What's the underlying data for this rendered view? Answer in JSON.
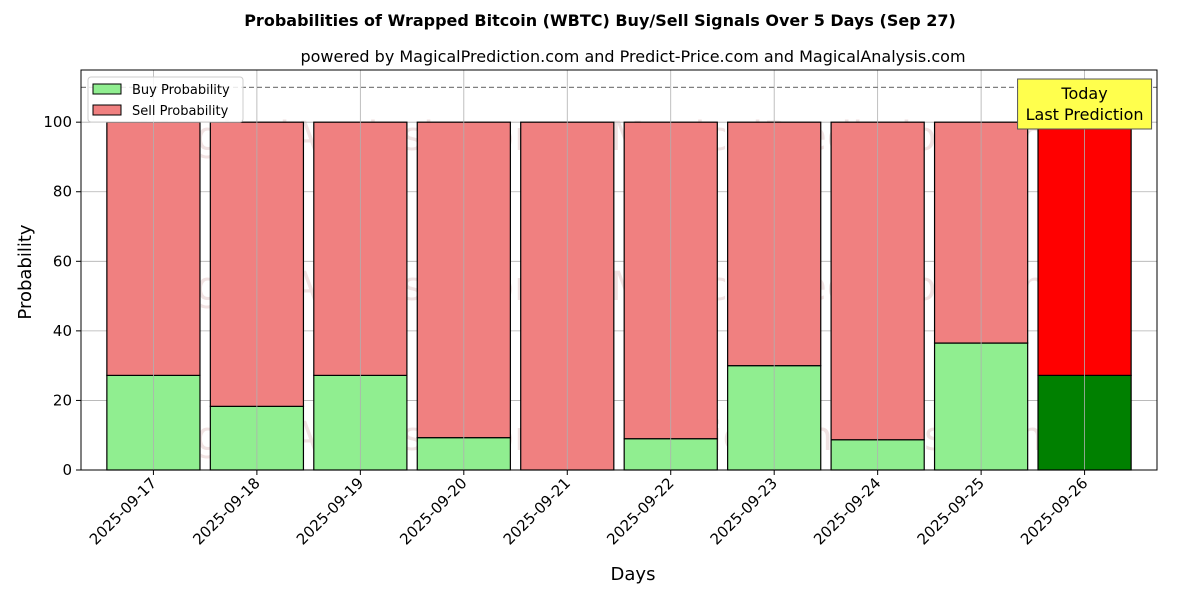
{
  "chart_data": {
    "type": "bar",
    "stacked": true,
    "title": "Probabilities of Wrapped Bitcoin (WBTC) Buy/Sell Signals Over 5 Days (Sep 27)",
    "subtitle": "powered by MagicalPrediction.com and Predict-Price.com and MagicalAnalysis.com",
    "xlabel": "Days",
    "ylabel": "Probability",
    "ylim": [
      0,
      115
    ],
    "yticks": [
      0,
      20,
      40,
      60,
      80,
      100
    ],
    "grid": true,
    "legend_position": "top-left",
    "categories": [
      "2025-09-17",
      "2025-09-18",
      "2025-09-19",
      "2025-09-20",
      "2025-09-21",
      "2025-09-22",
      "2025-09-23",
      "2025-09-24",
      "2025-09-25",
      "2025-09-26"
    ],
    "series": [
      {
        "name": "Buy Probability",
        "color": "#90ee90",
        "highlight_color": "#008000",
        "values": [
          27.2,
          18.3,
          27.2,
          9.3,
          0.0,
          9.0,
          30.0,
          8.7,
          36.5,
          27.2
        ]
      },
      {
        "name": "Sell Probability",
        "color": "#f08080",
        "highlight_color": "#ff0000",
        "values": [
          72.8,
          81.7,
          72.8,
          90.7,
          100.0,
          91.0,
          70.0,
          91.3,
          63.5,
          72.8
        ]
      }
    ],
    "highlight_index": 9,
    "reference_line": {
      "value": 110,
      "style": "dashed",
      "color": "#808080"
    },
    "annotation": {
      "lines": [
        "Today",
        "Last Prediction"
      ],
      "color": "#ffff4d"
    },
    "watermarks": [
      "MagicalAnalysis.com",
      "MagicalPrediction.com"
    ]
  }
}
